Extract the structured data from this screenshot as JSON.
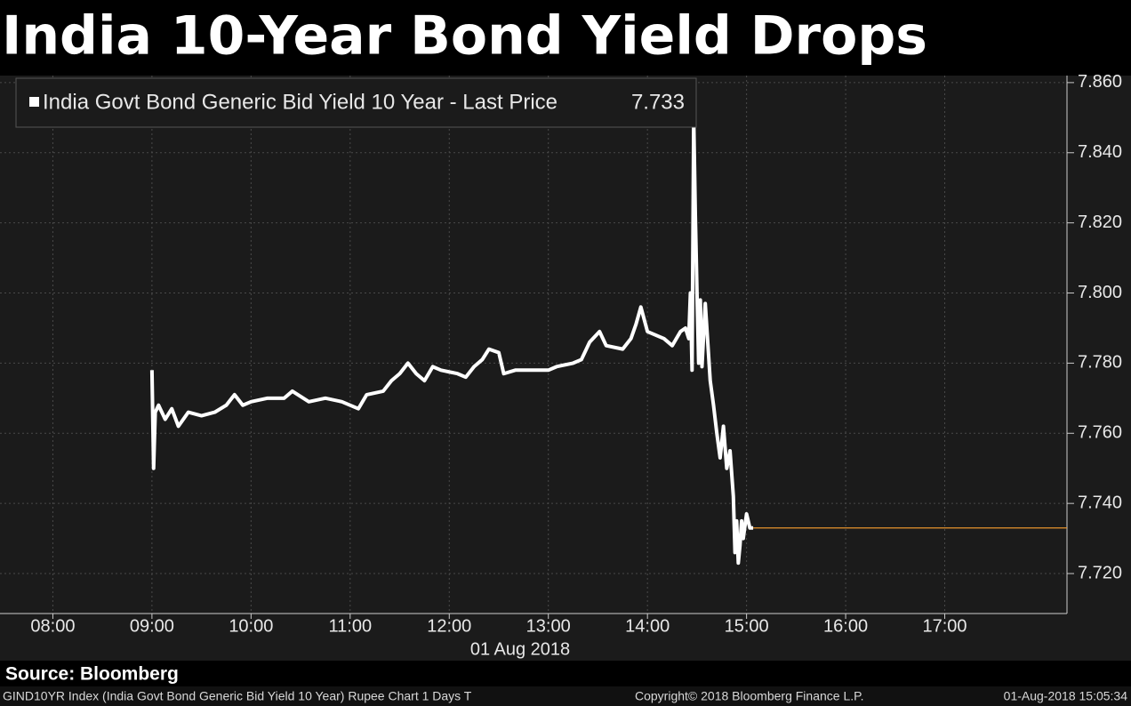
{
  "chart_data": {
    "type": "line",
    "title": "India 10-Year Bond Yield Drops",
    "xlabel": "01 Aug 2018",
    "x": [
      "09:00",
      "09:01",
      "09:02",
      "09:04",
      "09:08",
      "09:12",
      "09:16",
      "09:22",
      "09:30",
      "09:38",
      "09:45",
      "09:50",
      "09:55",
      "10:00",
      "10:10",
      "10:20",
      "10:25",
      "10:35",
      "10:45",
      "10:55",
      "11:05",
      "11:10",
      "11:20",
      "11:25",
      "11:30",
      "11:35",
      "11:40",
      "11:45",
      "11:50",
      "11:55",
      "12:05",
      "12:10",
      "12:15",
      "12:20",
      "12:24",
      "12:30",
      "12:33",
      "12:40",
      "12:50",
      "13:00",
      "13:05",
      "13:15",
      "13:20",
      "13:25",
      "13:31",
      "13:35",
      "13:45",
      "13:50",
      "13:53",
      "13:56",
      "14:00",
      "14:10",
      "14:15",
      "14:20",
      "14:23",
      "14:25",
      "14:26",
      "14:27",
      "14:28",
      "14:29",
      "14:30",
      "14:31",
      "14:32",
      "14:33",
      "14:35",
      "14:38",
      "14:40",
      "14:42",
      "14:44",
      "14:46",
      "14:48",
      "14:50",
      "14:52",
      "14:53",
      "14:54",
      "14:55",
      "14:56",
      "14:57",
      "14:58",
      "15:00",
      "15:02",
      "15:04"
    ],
    "series": [
      {
        "name": "India Govt Bond Generic Bid Yield 10 Year - Last Price",
        "color": "#ffffff",
        "values": [
          7.778,
          7.75,
          7.766,
          7.768,
          7.764,
          7.767,
          7.762,
          7.766,
          7.765,
          7.766,
          7.768,
          7.771,
          7.768,
          7.769,
          7.77,
          7.77,
          7.772,
          7.769,
          7.77,
          7.769,
          7.767,
          7.771,
          7.772,
          7.775,
          7.777,
          7.78,
          7.777,
          7.775,
          7.779,
          7.778,
          7.777,
          7.776,
          7.779,
          7.781,
          7.784,
          7.783,
          7.777,
          7.778,
          7.778,
          7.778,
          7.779,
          7.78,
          7.781,
          7.786,
          7.789,
          7.785,
          7.784,
          7.787,
          7.791,
          7.796,
          7.789,
          7.787,
          7.785,
          7.789,
          7.79,
          7.787,
          7.8,
          7.778,
          7.85,
          7.822,
          7.8,
          7.78,
          7.798,
          7.779,
          7.797,
          7.775,
          7.768,
          7.76,
          7.753,
          7.762,
          7.75,
          7.755,
          7.742,
          7.726,
          7.735,
          7.723,
          7.728,
          7.735,
          7.73,
          7.737,
          7.733,
          7.733
        ],
        "last_value": 7.733,
        "last_color": "#e8952c"
      }
    ],
    "xlim": [
      "07:28",
      "18:14"
    ],
    "xticks": [
      "08:00",
      "09:00",
      "10:00",
      "11:00",
      "12:00",
      "13:00",
      "14:00",
      "15:00",
      "16:00",
      "17:00"
    ],
    "ylim": [
      7.7086,
      7.862
    ],
    "yticks": [
      {
        "value": 7.72,
        "label": "7.720"
      },
      {
        "value": 7.74,
        "label": "7.740"
      },
      {
        "value": 7.76,
        "label": "7.760"
      },
      {
        "value": 7.78,
        "label": "7.780"
      },
      {
        "value": 7.8,
        "label": "7.800"
      },
      {
        "value": 7.82,
        "label": "7.820"
      },
      {
        "value": 7.84,
        "label": "7.840"
      },
      {
        "value": 7.86,
        "label": "7.860"
      }
    ],
    "grid": true,
    "source": "Source: Bloomberg",
    "footer": {
      "left": "GIND10YR Index (India Govt Bond Generic Bid Yield 10 Year) Rupee Chart 1 Days  T",
      "center": "Copyright© 2018 Bloomberg Finance L.P.",
      "right": "01-Aug-2018 15:05:34"
    }
  }
}
